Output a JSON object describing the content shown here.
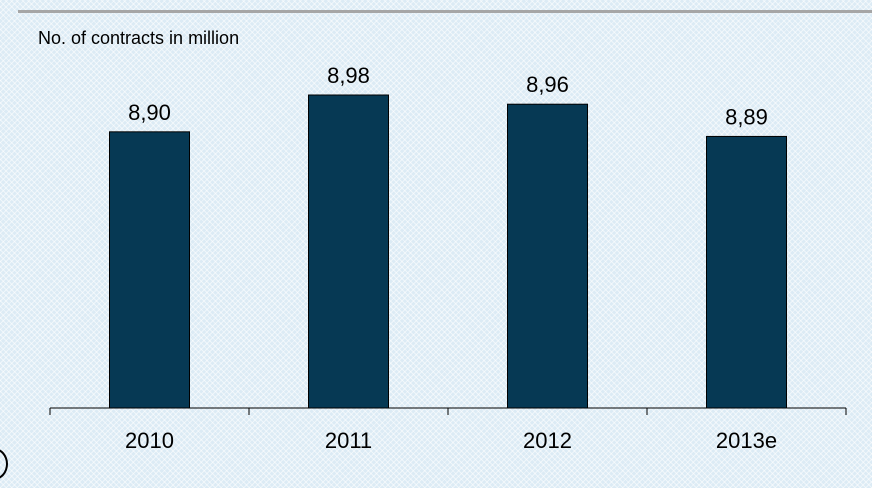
{
  "chart_data": {
    "type": "bar",
    "title": "",
    "ylabel": "No. of contracts in million",
    "xlabel": "",
    "categories": [
      "2010",
      "2011",
      "2012",
      "2013e"
    ],
    "values": [
      8.9,
      8.98,
      8.96,
      8.89
    ],
    "data_labels": [
      "8,90",
      "8,98",
      "8,96",
      "8,89"
    ],
    "bar_color": "#063954",
    "grid": false,
    "legend": "none"
  }
}
